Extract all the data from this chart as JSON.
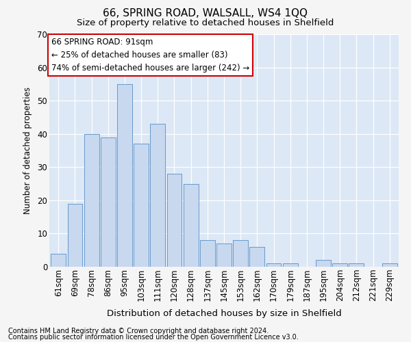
{
  "title1": "66, SPRING ROAD, WALSALL, WS4 1QQ",
  "title2": "Size of property relative to detached houses in Shelfield",
  "xlabel": "Distribution of detached houses by size in Shelfield",
  "ylabel": "Number of detached properties",
  "categories": [
    "61sqm",
    "69sqm",
    "78sqm",
    "86sqm",
    "95sqm",
    "103sqm",
    "111sqm",
    "120sqm",
    "128sqm",
    "137sqm",
    "145sqm",
    "153sqm",
    "162sqm",
    "170sqm",
    "179sqm",
    "187sqm",
    "195sqm",
    "204sqm",
    "212sqm",
    "221sqm",
    "229sqm"
  ],
  "values": [
    4,
    19,
    40,
    39,
    55,
    37,
    43,
    28,
    25,
    8,
    7,
    8,
    6,
    1,
    1,
    0,
    2,
    1,
    1,
    0,
    1
  ],
  "bar_color": "#c8d8ee",
  "bar_edge_color": "#6699cc",
  "ylim": [
    0,
    70
  ],
  "yticks": [
    0,
    10,
    20,
    30,
    40,
    50,
    60,
    70
  ],
  "annotation_title": "66 SPRING ROAD: 91sqm",
  "annotation_line1": "← 25% of detached houses are smaller (83)",
  "annotation_line2": "74% of semi-detached houses are larger (242) →",
  "footnote1": "Contains HM Land Registry data © Crown copyright and database right 2024.",
  "footnote2": "Contains public sector information licensed under the Open Government Licence v3.0.",
  "fig_bg_color": "#f5f5f5",
  "axes_bg_color": "#dce8f5",
  "grid_color": "#ffffff",
  "annotation_box_color": "#ffffff",
  "annotation_box_edge": "#cc0000",
  "title1_fontsize": 11,
  "title2_fontsize": 9.5,
  "xlabel_fontsize": 9.5,
  "ylabel_fontsize": 8.5,
  "tick_fontsize": 8.5,
  "annot_fontsize": 8.5,
  "footnote_fontsize": 7
}
